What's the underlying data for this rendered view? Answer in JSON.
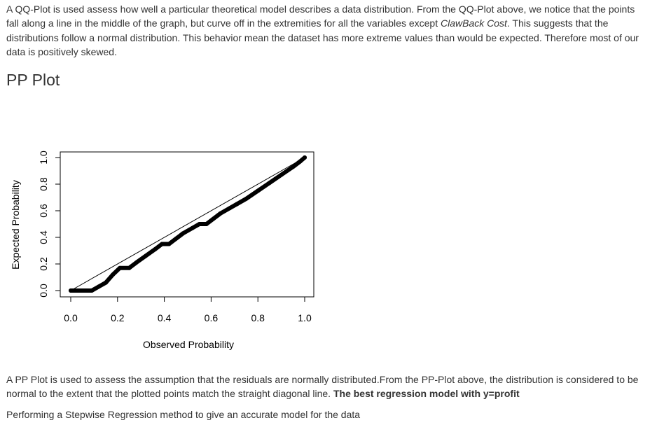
{
  "intro": {
    "p1": "A QQ-Plot is used assess how well a particular theoretical model describes a data distribution. From the QQ-Plot above, we notice that the points fall along a line in the middle of the graph, but curve off in the extremities for all the variables except ",
    "emph": "ClawBack Cost",
    "p2": ". This suggests that the distributions follow a normal distribution. This behavior mean the dataset has more extreme values than would be expected. Therefore most of our data is positively skewed."
  },
  "section_title": "PP Plot",
  "chart_data": {
    "type": "scatter",
    "title": "",
    "xlabel": "Observed Probability",
    "ylabel": "Expected Probability",
    "xlim": [
      0.0,
      1.0
    ],
    "ylim": [
      0.0,
      1.0
    ],
    "xticks": [
      "0.0",
      "0.2",
      "0.4",
      "0.6",
      "0.8",
      "1.0"
    ],
    "yticks": [
      "0.0",
      "0.2",
      "0.4",
      "0.6",
      "0.8",
      "1.0"
    ],
    "reference_line": [
      [
        0,
        0
      ],
      [
        1,
        1
      ]
    ],
    "points": [
      [
        0.0,
        0.0
      ],
      [
        0.03,
        0.0
      ],
      [
        0.06,
        0.0
      ],
      [
        0.09,
        0.0
      ],
      [
        0.12,
        0.03
      ],
      [
        0.15,
        0.06
      ],
      [
        0.18,
        0.12
      ],
      [
        0.21,
        0.17
      ],
      [
        0.25,
        0.17
      ],
      [
        0.28,
        0.21
      ],
      [
        0.32,
        0.26
      ],
      [
        0.36,
        0.31
      ],
      [
        0.39,
        0.35
      ],
      [
        0.42,
        0.35
      ],
      [
        0.45,
        0.39
      ],
      [
        0.48,
        0.43
      ],
      [
        0.52,
        0.47
      ],
      [
        0.55,
        0.5
      ],
      [
        0.58,
        0.5
      ],
      [
        0.61,
        0.54
      ],
      [
        0.64,
        0.58
      ],
      [
        0.68,
        0.62
      ],
      [
        0.71,
        0.65
      ],
      [
        0.75,
        0.69
      ],
      [
        0.8,
        0.75
      ],
      [
        0.85,
        0.81
      ],
      [
        0.9,
        0.87
      ],
      [
        0.95,
        0.93
      ],
      [
        0.98,
        0.97
      ],
      [
        1.0,
        1.0
      ]
    ],
    "grid": false,
    "legend": "none"
  },
  "pp_text": {
    "p1": "A PP Plot is used to assess the assumption that the residuals are normally distributed.From the PP-Plot above, the distribution is considered to be normal to the extent that the plotted points match the straight diagonal line. ",
    "bold": "The best regression model with y=profit"
  },
  "stepwise_text": "Performing a Stepwise Regression method to give an accurate model for the data"
}
